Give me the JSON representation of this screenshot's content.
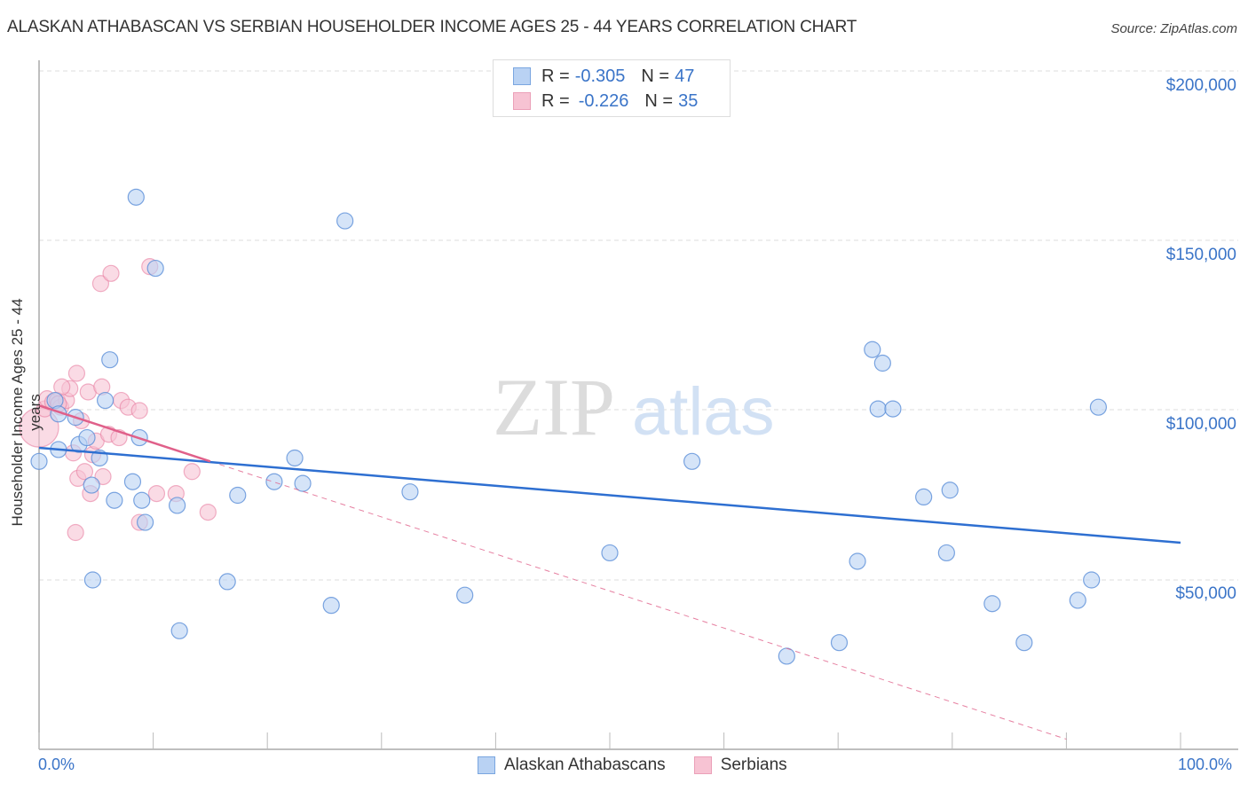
{
  "title": "ALASKAN ATHABASCAN VS SERBIAN HOUSEHOLDER INCOME AGES 25 - 44 YEARS CORRELATION CHART",
  "source": "Source: ZipAtlas.com",
  "watermark": {
    "zip": "ZIP",
    "atlas": "atlas"
  },
  "colors": {
    "blue": "#3a74c8",
    "blue_fill": "#b9d2f3",
    "blue_line": "#2e6fd1",
    "pink": "#e87da0",
    "pink_fill": "#f7c3d3",
    "pink_line": "#e0608a",
    "grid": "#dddddd"
  },
  "legend_top": {
    "rows": [
      {
        "r_label": "R = ",
        "r_value": "-0.305",
        "n_label": "N = ",
        "n_value": "47"
      },
      {
        "r_label": "R = ",
        "r_value": "-0.226",
        "n_label": "N = ",
        "n_value": "35"
      }
    ]
  },
  "legend_bottom": {
    "series1": "Alaskan Athabascans",
    "series2": "Serbians"
  },
  "axes": {
    "ylabel": "Householder Income Ages 25 - 44 years",
    "x_min_label": "0.0%",
    "x_max_label": "100.0%",
    "y_ticks": [
      "$200,000",
      "$150,000",
      "$100,000",
      "$50,000"
    ]
  },
  "chart_data": {
    "type": "scatter",
    "title": "ALASKAN ATHABASCAN VS SERBIAN HOUSEHOLDER INCOME AGES 25 - 44 YEARS CORRELATION CHART",
    "xlabel": "",
    "ylabel": "Householder Income Ages 25 - 44 years",
    "xlim": [
      0,
      100
    ],
    "ylim": [
      0,
      205000
    ],
    "x_tick_labels": [
      "0.0%",
      "100.0%"
    ],
    "y_tick_labels": [
      "$50,000",
      "$100,000",
      "$150,000",
      "$200,000"
    ],
    "grid": true,
    "legend_position": "top-center",
    "series": [
      {
        "name": "Alaskan Athabascans",
        "r": -0.305,
        "n": 47,
        "trend": {
          "x": [
            0,
            100
          ],
          "y": [
            89000,
            61000
          ]
        },
        "points": [
          [
            0.0,
            85000
          ],
          [
            1.4,
            103000
          ],
          [
            1.7,
            88500
          ],
          [
            1.7,
            99000
          ],
          [
            3.2,
            98000
          ],
          [
            3.5,
            90000
          ],
          [
            4.2,
            92000
          ],
          [
            4.6,
            78000
          ],
          [
            4.7,
            50000
          ],
          [
            5.3,
            86000
          ],
          [
            5.8,
            103000
          ],
          [
            6.2,
            115000
          ],
          [
            6.6,
            73500
          ],
          [
            8.2,
            79000
          ],
          [
            8.5,
            163000
          ],
          [
            9.0,
            73500
          ],
          [
            9.3,
            67000
          ],
          [
            10.2,
            142000
          ],
          [
            12.1,
            72000
          ],
          [
            12.3,
            35000
          ],
          [
            16.5,
            49500
          ],
          [
            17.4,
            75000
          ],
          [
            20.6,
            79000
          ],
          [
            22.4,
            86000
          ],
          [
            23.1,
            78500
          ],
          [
            25.6,
            42500
          ],
          [
            26.8,
            156000
          ],
          [
            32.5,
            76000
          ],
          [
            37.3,
            45500
          ],
          [
            50.0,
            58000
          ],
          [
            57.2,
            85000
          ],
          [
            65.5,
            27500
          ],
          [
            70.1,
            31500
          ],
          [
            71.7,
            55500
          ],
          [
            73.0,
            118000
          ],
          [
            73.5,
            100500
          ],
          [
            73.9,
            114000
          ],
          [
            74.8,
            100500
          ],
          [
            77.5,
            74500
          ],
          [
            79.5,
            58000
          ],
          [
            79.8,
            76500
          ],
          [
            83.5,
            43000
          ],
          [
            86.3,
            31500
          ],
          [
            91.0,
            44000
          ],
          [
            92.2,
            50000
          ],
          [
            92.8,
            101000
          ],
          [
            8.8,
            92000
          ]
        ]
      },
      {
        "name": "Serbians",
        "r": -0.226,
        "n": 35,
        "trend": {
          "x": [
            0,
            15
          ],
          "y": [
            101500,
            85000
          ],
          "extrapolated_dashed_to": [
            90,
            3000
          ]
        },
        "points": [
          [
            0.0,
            95000
          ],
          [
            0.5,
            100500
          ],
          [
            0.7,
            103500
          ],
          [
            1.2,
            102500
          ],
          [
            1.6,
            103000
          ],
          [
            1.9,
            101000
          ],
          [
            2.4,
            103000
          ],
          [
            2.7,
            106500
          ],
          [
            3.0,
            87500
          ],
          [
            3.3,
            111000
          ],
          [
            2.0,
            107000
          ],
          [
            3.7,
            97000
          ],
          [
            3.2,
            64000
          ],
          [
            3.4,
            80000
          ],
          [
            4.0,
            82000
          ],
          [
            4.3,
            105500
          ],
          [
            4.5,
            75500
          ],
          [
            4.7,
            87000
          ],
          [
            5.0,
            91000
          ],
          [
            5.6,
            80500
          ],
          [
            5.5,
            107000
          ],
          [
            5.4,
            137500
          ],
          [
            6.1,
            93000
          ],
          [
            6.3,
            140500
          ],
          [
            7.0,
            92000
          ],
          [
            7.2,
            103000
          ],
          [
            7.8,
            101000
          ],
          [
            8.8,
            100000
          ],
          [
            8.8,
            67000
          ],
          [
            9.7,
            142500
          ],
          [
            10.3,
            75500
          ],
          [
            12.0,
            75500
          ],
          [
            13.4,
            82000
          ],
          [
            14.8,
            70000
          ],
          [
            1.7,
            102000
          ]
        ]
      }
    ]
  }
}
